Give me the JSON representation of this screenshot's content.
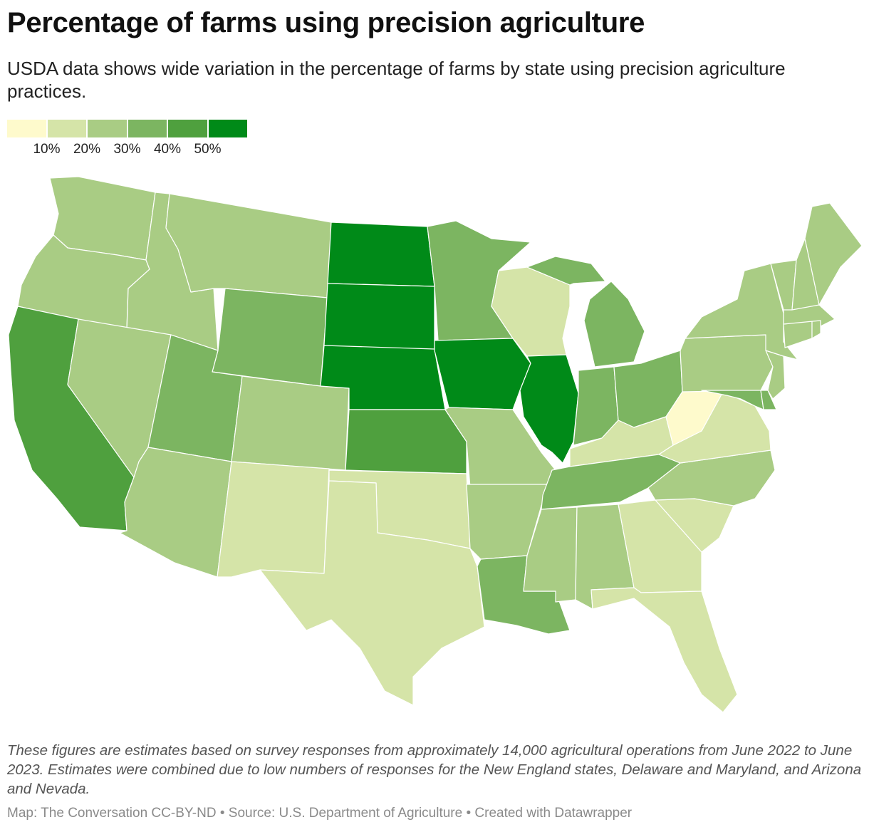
{
  "title": "Percentage of farms using precision agriculture",
  "subtitle": "USDA data shows wide variation in the percentage of farms by state using precision agriculture practices.",
  "legend": {
    "colors": [
      "#fefacc",
      "#d5e4a8",
      "#a9cc84",
      "#7cb561",
      "#4fa03e",
      "#008a18"
    ],
    "labels": [
      "10%",
      "20%",
      "30%",
      "40%",
      "50%"
    ]
  },
  "map": {
    "type": "choropleth",
    "region": "contiguous United States",
    "state_bins": {
      "WA": 3,
      "OR": 3,
      "CA": 5,
      "ID": 3,
      "NV": 3,
      "MT": 3,
      "WY": 4,
      "UT": 4,
      "AZ": 3,
      "CO": 3,
      "NM": 2,
      "ND": 6,
      "SD": 6,
      "NE": 6,
      "KS": 5,
      "OK": 2,
      "TX": 2,
      "MN": 4,
      "IA": 6,
      "MO": 3,
      "AR": 3,
      "LA": 4,
      "WI": 2,
      "IL": 6,
      "MI": 4,
      "IN": 4,
      "OH": 4,
      "KY": 2,
      "TN": 4,
      "MS": 3,
      "AL": 3,
      "GA": 2,
      "FL": 2,
      "SC": 2,
      "NC": 3,
      "VA": 2,
      "WV": 1,
      "PA": 3,
      "NY": 3,
      "NJ": 3,
      "MD": 4,
      "DE": 4,
      "VT": 3,
      "NH": 3,
      "ME": 3,
      "MA": 3,
      "CT": 3,
      "RI": 3
    }
  },
  "notes": "These figures are estimates based on survey responses from approximately 14,000 agricultural operations from June 2022 to June 2023. Estimates were combined due to low numbers of responses for the New England states, Delaware and Maryland, and Arizona and Nevada.",
  "footer": "Map: The Conversation CC-BY-ND • Source: U.S. Department of Agriculture • Created with Datawrapper"
}
